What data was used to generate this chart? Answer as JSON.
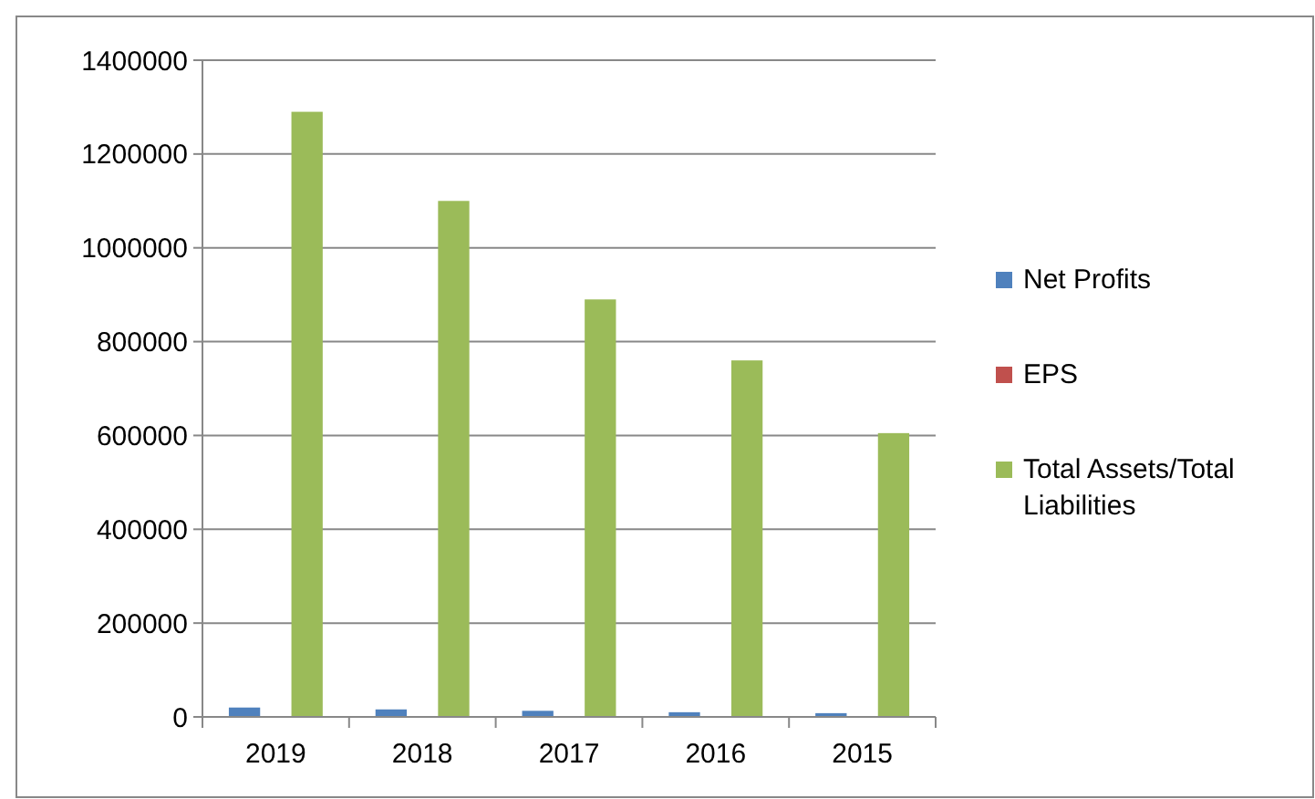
{
  "chart_data": {
    "type": "bar",
    "categories": [
      "2019",
      "2018",
      "2017",
      "2016",
      "2015"
    ],
    "series": [
      {
        "name": "Net Profits",
        "color": "#4f81bd",
        "values": [
          20000,
          16000,
          13000,
          10000,
          8000
        ]
      },
      {
        "name": "EPS",
        "color": "#c0504d",
        "values": [
          0,
          0,
          0,
          0,
          0
        ]
      },
      {
        "name": "Total Assets/Total Liabilities",
        "color": "#9bbb59",
        "values": [
          1290000,
          1100000,
          890000,
          760000,
          605000
        ]
      }
    ],
    "ylim": [
      0,
      1400000
    ],
    "yticks": [
      0,
      200000,
      400000,
      600000,
      800000,
      1000000,
      1200000,
      1400000
    ],
    "grid": "y",
    "legend": "right"
  }
}
